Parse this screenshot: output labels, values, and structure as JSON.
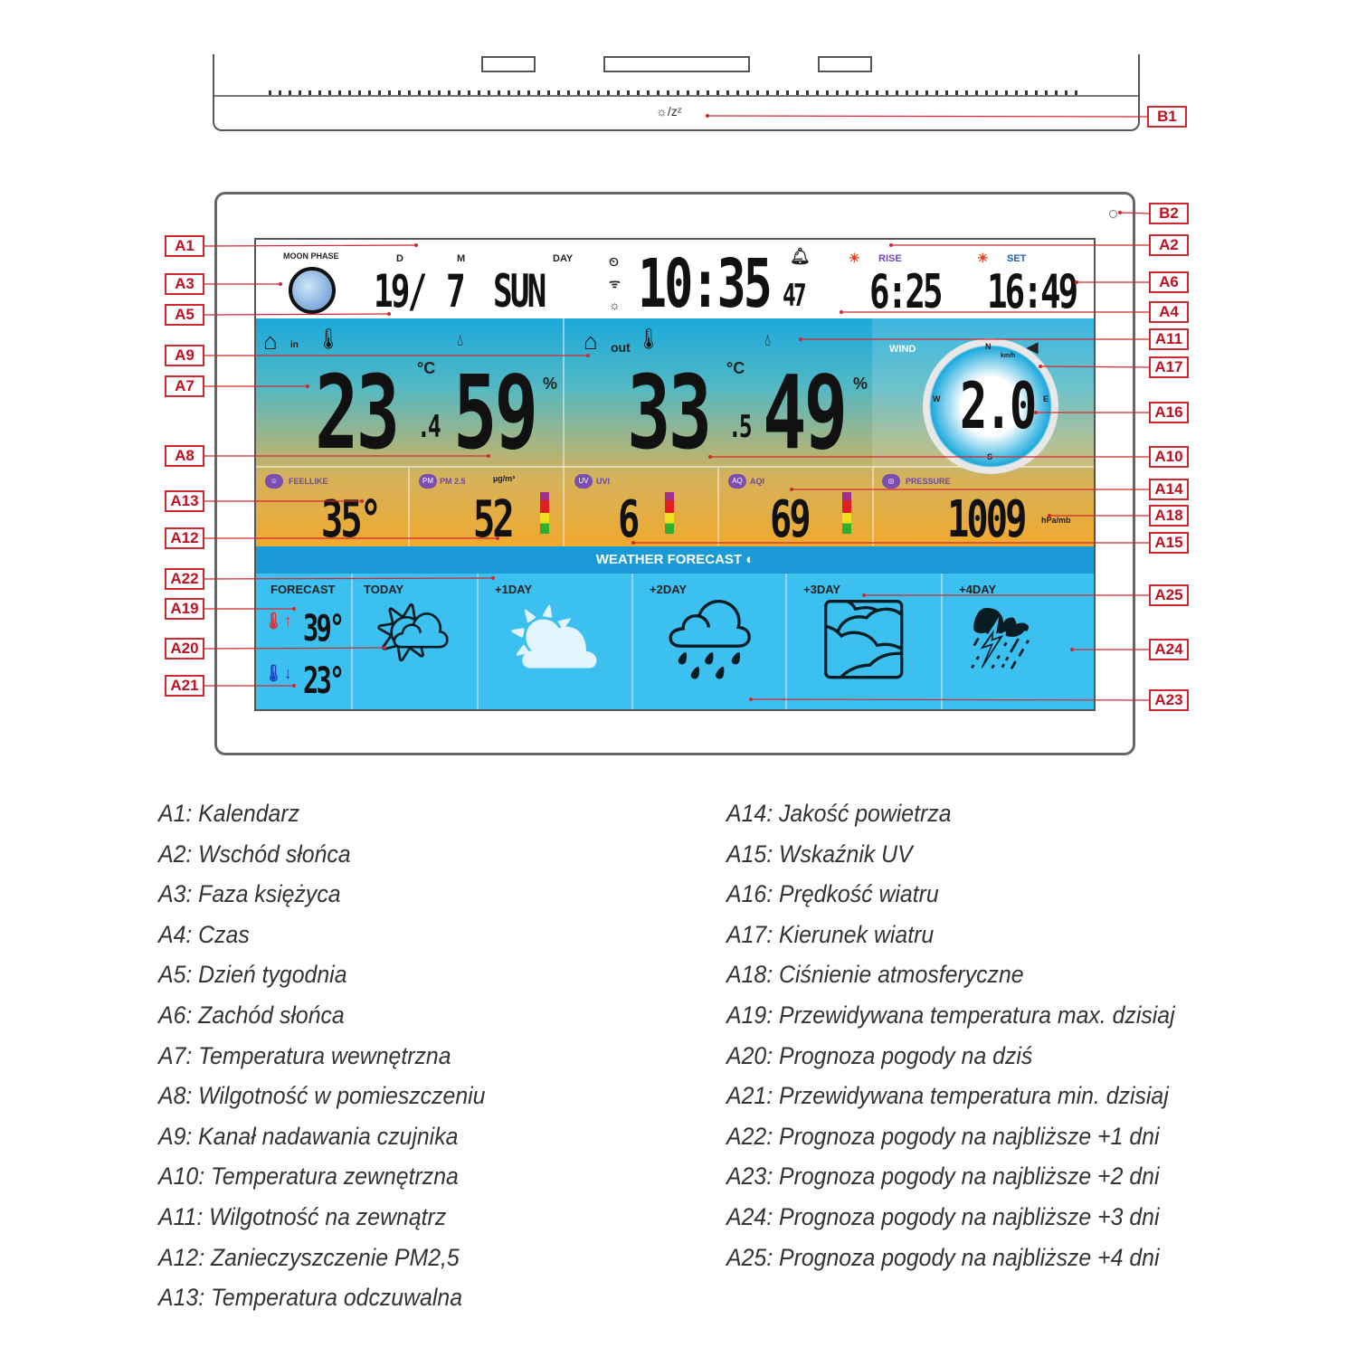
{
  "device": {
    "b1_symbol": "☼/zᶻ"
  },
  "display": {
    "moon_phase_label": "MOON PHASE",
    "date_d_label": "D",
    "date_m_label": "M",
    "day_label": "DAY",
    "day": "19/",
    "month": "7",
    "weekday": "SUN",
    "time": "10:35",
    "seconds": "47",
    "rise_label": "RISE",
    "set_label": "SET",
    "sunrise": "6:25",
    "sunset": "16:49",
    "indoor_label": "in",
    "outdoor_label": "out",
    "wind_label": "WIND",
    "indoor_temp": "23",
    "indoor_temp_dec": ".4",
    "indoor_hum": "59",
    "temp_unit": "°C",
    "hum_unit": "%",
    "outdoor_temp": "33",
    "outdoor_temp_dec": ".5",
    "outdoor_hum": "49",
    "wind_speed": "2.0",
    "wind_unit": "km/h",
    "compass": {
      "n": "N",
      "e": "E",
      "s": "S",
      "w": "W"
    },
    "feellike_label": "FEELLIKE",
    "feellike": "35°",
    "pm_label": "PM 2.5",
    "pm_unit": "µg/m³",
    "pm": "52",
    "uvi_label": "UVI",
    "uvi": "6",
    "aqi_label": "AQI",
    "aqi": "69",
    "pressure_label": "PRESSURE",
    "pressure": "1009",
    "pressure_unit": "hPa/mb",
    "forecast_header": "WEATHER FORECAST",
    "forecast_label": "FORECAST",
    "max_temp": "39°",
    "min_temp": "23°",
    "days": [
      {
        "label": "TODAY",
        "icon": "partly-sunny-icon",
        "glyph": "🌤"
      },
      {
        "label": "+1DAY",
        "icon": "sun-cloud-icon",
        "glyph": "⛅"
      },
      {
        "label": "+2DAY",
        "icon": "rain-icon",
        "glyph": "🌧"
      },
      {
        "label": "+3DAY",
        "icon": "fog-icon",
        "glyph": "🌫"
      },
      {
        "label": "+4DAY",
        "icon": "thunderstorm-icon",
        "glyph": "⛈"
      }
    ]
  },
  "callouts": [
    "A1",
    "A3",
    "A5",
    "A9",
    "A7",
    "A8",
    "A13",
    "A12",
    "A22",
    "A19",
    "A20",
    "A21",
    "B1",
    "B2",
    "A2",
    "A6",
    "A4",
    "A11",
    "A17",
    "A16",
    "A10",
    "A14",
    "A18",
    "A15",
    "A25",
    "A24",
    "A23"
  ],
  "callout_color": "#d0282f",
  "legend_left": [
    "A1: Kalendarz",
    "A2: Wschód słońca",
    "A3: Faza księżyca",
    "A4: Czas",
    "A5: Dzień tygodnia",
    "A6: Zachód słońca",
    "A7: Temperatura wewnętrzna",
    "A8: Wilgotność w pomieszczeniu",
    "A9: Kanał nadawania czujnika",
    "A10: Temperatura zewnętrzna",
    "A11: Wilgotność na zewnątrz",
    "A12: Zanieczyszczenie PM2,5",
    "A13: Temperatura odczuwalna"
  ],
  "legend_right": [
    "A14: Jakość powietrza",
    "A15: Wskaźnik UV",
    "A16: Prędkość wiatru",
    "A17: Kierunek wiatru",
    "A18: Ciśnienie atmosferyczne",
    "A19: Przewidywana temperatura max. dzisiaj",
    "A20: Prognoza pogody na dziś",
    "A21: Przewidywana temperatura min. dzisiaj",
    "A22: Prognoza pogody na najbliższe +1 dni",
    "A23: Prognoza pogody na najbliższe +2 dni",
    "A24: Prognoza pogody na najbliższe +3 dni",
    "A25: Prognoza pogody na najbliższe +4 dni"
  ]
}
